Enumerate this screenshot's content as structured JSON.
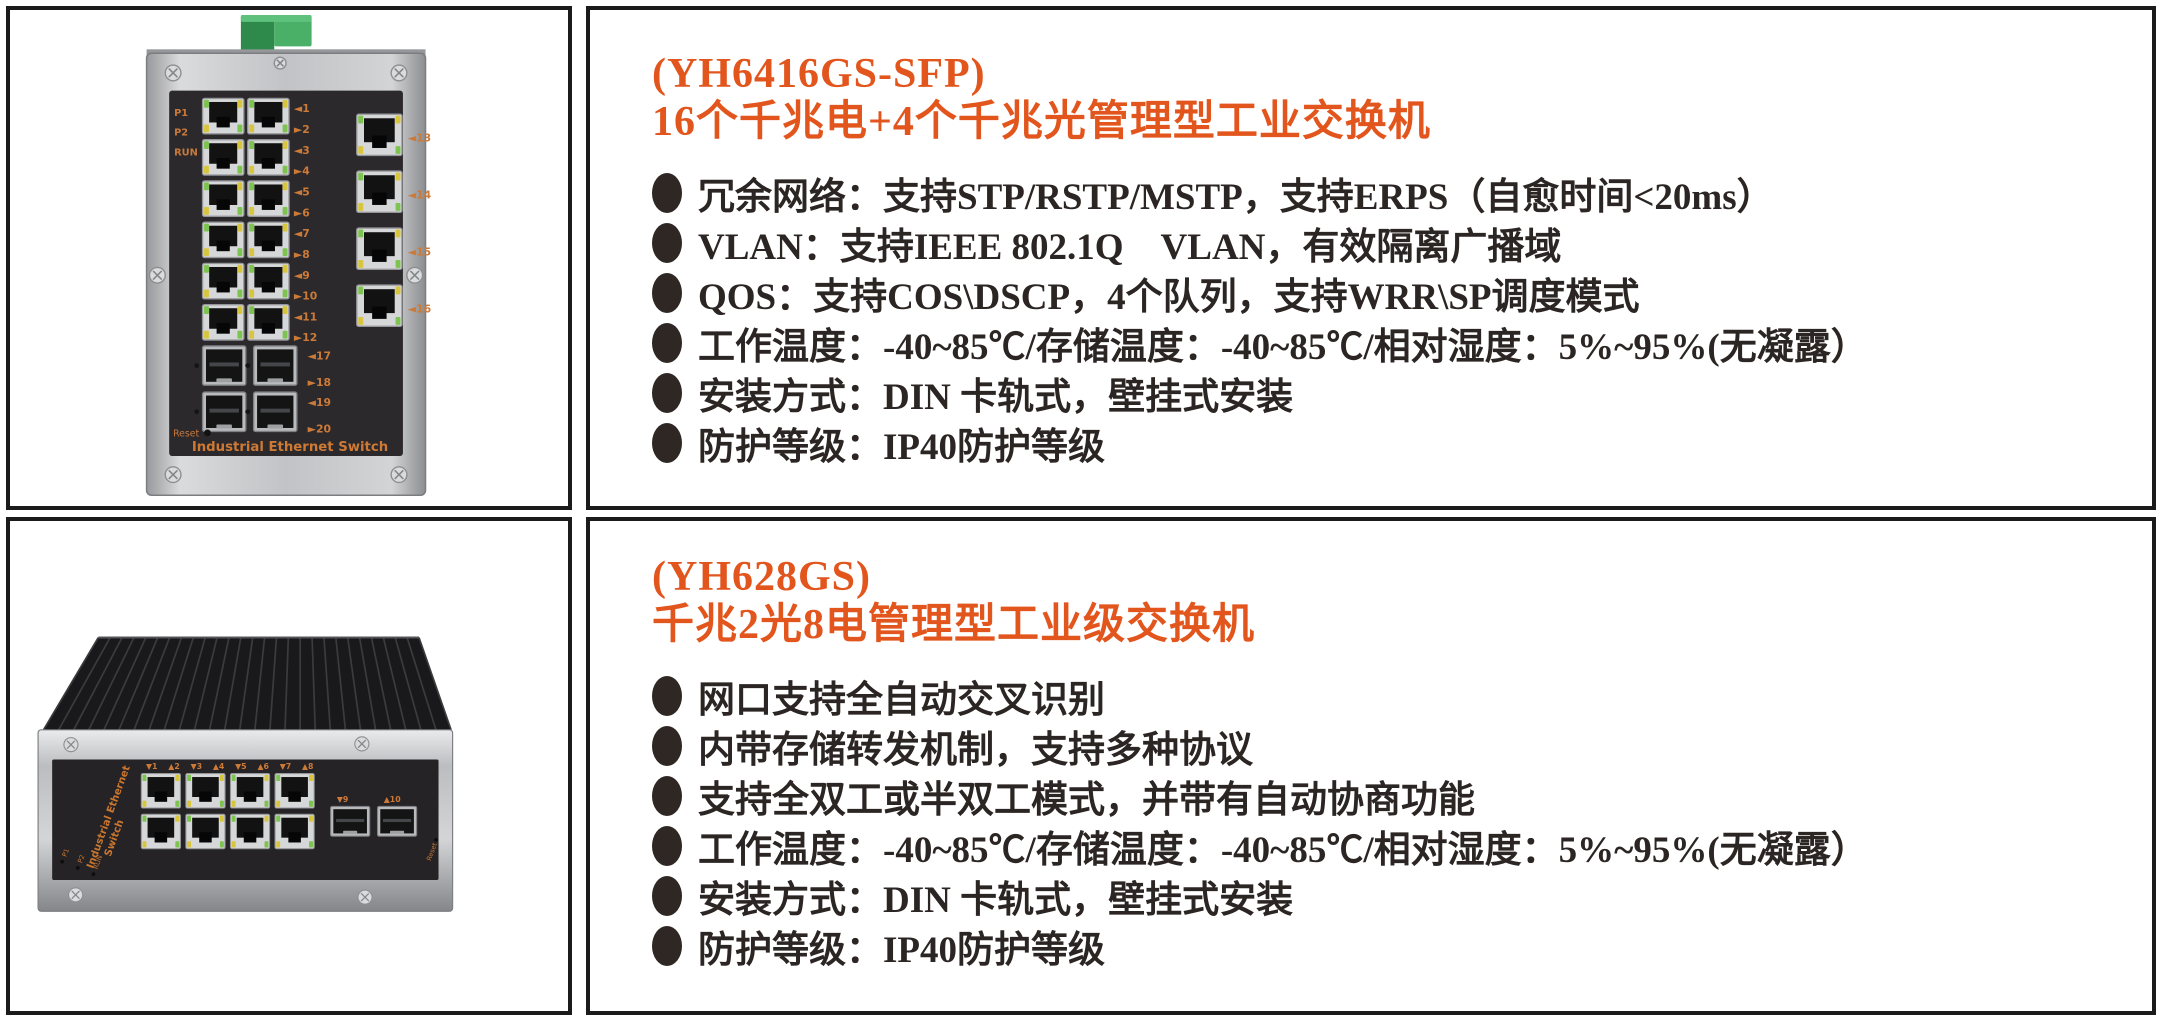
{
  "page": {
    "background": "#ffffff",
    "accent_color": "#e2561e",
    "text_color": "#2b2523",
    "border_color": "#1b1b1b"
  },
  "products": [
    {
      "model": "(YH6416GS-SFP)",
      "name": "16个千兆电+4个千兆光管理型工业交换机",
      "features": [
        "冗余网络：支持STP/RSTP/MSTP，支持ERPS（自愈时间<20ms）",
        "VLAN：支持IEEE 802.1Q　VLAN，有效隔离广播域",
        "QOS：支持COS\\DSCP，4个队列，支持WRR\\SP调度模式",
        "工作温度：-40~85℃/存储温度：-40~85℃/相对湿度：5%~95%(无凝露）",
        "安装方式：DIN 卡轨式，壁挂式安装",
        "防护等级：IP40防护等级"
      ],
      "device": {
        "type": "vertical-din-rail-switch",
        "panel_text": "Industrial Ethernet Switch",
        "reset_label": "Reset",
        "led_labels": [
          "P1",
          "P2",
          "RUN"
        ],
        "rj45_main_labels": [
          "1",
          "2",
          "3",
          "4",
          "5",
          "6",
          "7",
          "8",
          "9",
          "10",
          "11",
          "12"
        ],
        "rj45_right_labels": [
          "13",
          "14",
          "15",
          "16"
        ],
        "sfp_labels": [
          "17",
          "18",
          "19",
          "20"
        ]
      }
    },
    {
      "model": "(YH628GS)",
      "name": "千兆2光8电管理型工业级交换机",
      "features": [
        "网口支持全自动交叉识别",
        "内带存储转发机制，支持多种协议",
        "支持全双工或半双工模式，并带有自动协商功能",
        "工作温度：-40~85℃/存储温度：-40~85℃/相对湿度：5%~95%(无凝露）",
        "安装方式：DIN 卡轨式，壁挂式安装",
        "防护等级：IP40防护等级"
      ],
      "device": {
        "type": "horizontal-din-rail-switch",
        "panel_text_line1": "Industrial Ethernet",
        "panel_text_line2": "Switch",
        "reset_label": "Reset",
        "led_labels": [
          "P1",
          "P2",
          "RUN"
        ],
        "rj45_labels": [
          "1",
          "2",
          "3",
          "4",
          "5",
          "6",
          "7",
          "8"
        ],
        "sfp_labels": [
          "9",
          "10"
        ]
      }
    }
  ]
}
